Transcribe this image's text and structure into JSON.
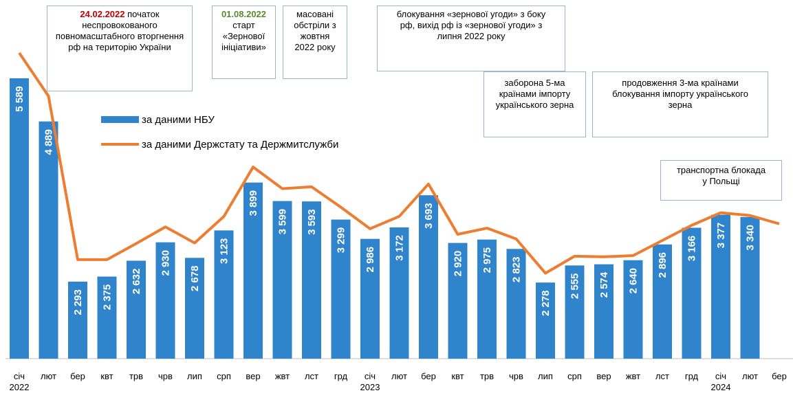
{
  "chart_data": {
    "type": "bar_line",
    "categories": [
      "січ",
      "лют",
      "бер",
      "квт",
      "трв",
      "чрв",
      "лип",
      "срп",
      "вер",
      "жвт",
      "лст",
      "грд",
      "січ",
      "лют",
      "бер",
      "квт",
      "трв",
      "чрв",
      "лип",
      "срп",
      "вер",
      "жвт",
      "лст",
      "грд",
      "січ",
      "лют",
      "бер"
    ],
    "sublabels": [
      "2022",
      null,
      null,
      null,
      null,
      null,
      null,
      null,
      null,
      null,
      null,
      null,
      "2023",
      null,
      null,
      null,
      null,
      null,
      null,
      null,
      null,
      null,
      null,
      null,
      "2024",
      null,
      null
    ],
    "series": [
      {
        "name": "за даними НБУ",
        "color": "#2f84cc",
        "kind": "bar",
        "values": [
          5589,
          4889,
          2293,
          2375,
          2632,
          2930,
          2678,
          3123,
          3899,
          3599,
          3593,
          3299,
          2986,
          3172,
          3693,
          2920,
          2975,
          2823,
          2278,
          2555,
          2574,
          2640,
          2896,
          3166,
          3377,
          3340,
          null
        ],
        "value_labels": [
          "5 589",
          "4 889",
          "2 293",
          "2 375",
          "2 632",
          "2 930",
          "2 678",
          "3 123",
          "3 899",
          "3 599",
          "3 593",
          "3 299",
          "2 986",
          "3 172",
          "3 693",
          "2 920",
          "2 975",
          "2 823",
          "2 278",
          "2 555",
          "2 574",
          "2 640",
          "2 896",
          "3 166",
          "3 377",
          "3 340",
          null
        ]
      },
      {
        "name": "за даними Держстату та Держмитслужби",
        "color": "#ed7d31",
        "kind": "line",
        "values": [
          6000,
          5300,
          2650,
          2650,
          2910,
          3180,
          2920,
          3350,
          4150,
          3800,
          3830,
          3500,
          3150,
          3350,
          3875,
          3060,
          3160,
          2985,
          2430,
          2705,
          2695,
          2715,
          2960,
          3205,
          3410,
          3365,
          3230
        ]
      }
    ],
    "ylim": [
      1000,
      6000
    ],
    "annotations": [
      {
        "date": "24.02.2022",
        "text": "початок неспровокованого повномасштабного вторгнення рф на територію України"
      },
      {
        "date": "01.08.2022",
        "text": "старт «Зернової ініціативи»"
      },
      {
        "text": "масовані обстріли з жовтня 2022 року"
      },
      {
        "text": "блокування «зернової угоди» з боку рф, вихід рф із «зернової угоди» з липня 2022 року"
      },
      {
        "text": "заборона 5-ма країнами імпорту українського зерна"
      },
      {
        "text": "продовження 3-ма країнами блокування імпорту українського зерна"
      },
      {
        "text": "транспортна блокада у Польщі"
      }
    ]
  }
}
